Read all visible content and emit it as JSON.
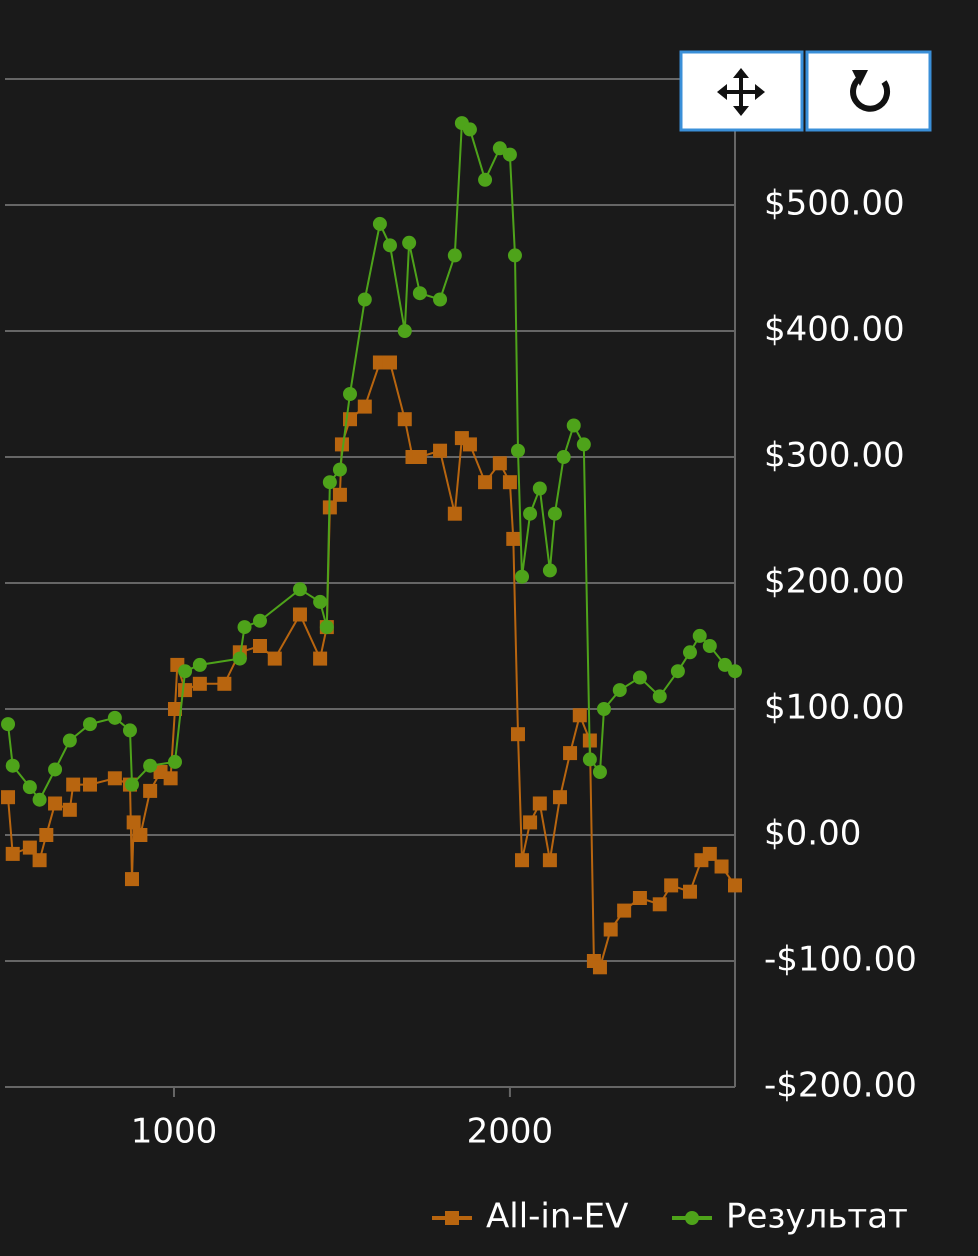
{
  "chart_data": {
    "type": "line",
    "xlim": [
      497,
      2670
    ],
    "xticks": [
      1000,
      2000
    ],
    "ylim": [
      -200,
      600
    ],
    "yticks": [
      {
        "value": -200,
        "label": "-$200.00"
      },
      {
        "value": -100,
        "label": "-$100.00"
      },
      {
        "value": 0,
        "label": "$0.00"
      },
      {
        "value": 100,
        "label": "$100.00"
      },
      {
        "value": 200,
        "label": "$200.00"
      },
      {
        "value": 300,
        "label": "$300.00"
      },
      {
        "value": 400,
        "label": "$400.00"
      },
      {
        "value": 500,
        "label": "$500.00"
      }
    ],
    "grid": true,
    "legend": "bottom-right",
    "series": [
      {
        "name": "All-in-EV",
        "color": "#b8650f",
        "marker": "square",
        "x": [
          506,
          520,
          571,
          600,
          620,
          646,
          690,
          700,
          750,
          824,
          869,
          875,
          880,
          900,
          929,
          960,
          990,
          1003,
          1010,
          1033,
          1077,
          1150,
          1196,
          1256,
          1300,
          1375,
          1435,
          1455,
          1464,
          1494,
          1500,
          1524,
          1568,
          1613,
          1643,
          1687,
          1710,
          1732,
          1792,
          1836,
          1857,
          1881,
          1926,
          1970,
          2000,
          2010,
          2024,
          2036,
          2060,
          2089,
          2119,
          2149,
          2179,
          2208,
          2238,
          2250,
          2268,
          2300,
          2340,
          2387,
          2446,
          2480,
          2536,
          2570,
          2595,
          2630,
          2670
        ],
        "values": [
          30,
          -15,
          -10,
          -20,
          0,
          25,
          20,
          40,
          40,
          45,
          40,
          -35,
          10,
          0,
          35,
          50,
          45,
          100,
          135,
          115,
          120,
          120,
          145,
          150,
          140,
          175,
          140,
          165,
          260,
          270,
          310,
          330,
          340,
          375,
          375,
          330,
          300,
          300,
          305,
          255,
          315,
          310,
          280,
          295,
          280,
          235,
          80,
          -20,
          10,
          25,
          -20,
          30,
          65,
          95,
          75,
          -100,
          -105,
          -75,
          -60,
          -50,
          -55,
          -40,
          -45,
          -20,
          -15,
          -25,
          -40
        ]
      },
      {
        "name": "Результат",
        "color": "#4ea31a",
        "marker": "circle",
        "x": [
          506,
          520,
          571,
          600,
          646,
          690,
          750,
          824,
          869,
          875,
          929,
          1003,
          1033,
          1077,
          1196,
          1210,
          1256,
          1375,
          1435,
          1455,
          1464,
          1494,
          1524,
          1568,
          1613,
          1643,
          1687,
          1700,
          1732,
          1792,
          1836,
          1857,
          1881,
          1926,
          1970,
          2000,
          2015,
          2024,
          2036,
          2060,
          2089,
          2119,
          2134,
          2160,
          2190,
          2220,
          2238,
          2268,
          2280,
          2327,
          2387,
          2446,
          2500,
          2536,
          2565,
          2595,
          2640,
          2670
        ],
        "values": [
          88,
          55,
          38,
          28,
          52,
          75,
          88,
          93,
          83,
          40,
          55,
          58,
          130,
          135,
          140,
          165,
          170,
          195,
          185,
          165,
          280,
          290,
          350,
          425,
          485,
          468,
          400,
          470,
          430,
          425,
          460,
          565,
          560,
          520,
          545,
          540,
          460,
          305,
          205,
          255,
          275,
          210,
          255,
          300,
          325,
          310,
          60,
          50,
          100,
          115,
          125,
          110,
          130,
          145,
          158,
          150,
          135,
          130
        ]
      }
    ]
  }
}
